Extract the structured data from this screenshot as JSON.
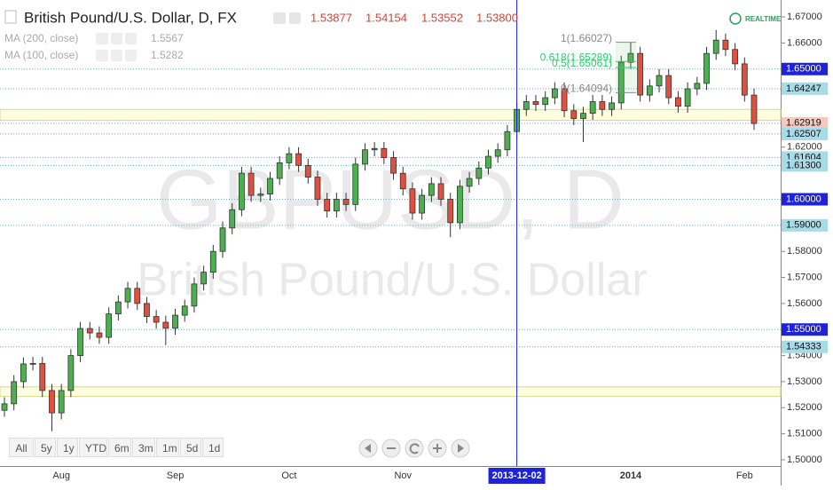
{
  "header": {
    "title": "British Pound/U.S. Dollar, D, FX",
    "ohlc": [
      "1.53877",
      "1.54154",
      "1.53552",
      "1.53800"
    ],
    "indicators": [
      {
        "name": "MA (200, close)",
        "value": "1.5567"
      },
      {
        "name": "MA (100, close)",
        "value": "1.5282"
      }
    ],
    "status": "REALTIME"
  },
  "chart_data": {
    "type": "candlestick",
    "watermark": [
      "GBPUSD, D",
      "British Pound/U.S. Dollar"
    ],
    "categories": [
      null,
      null,
      null,
      null,
      null,
      null,
      "Aug",
      null,
      null,
      null,
      null,
      null,
      null,
      null,
      null,
      null,
      null,
      null,
      "Sep",
      null,
      null,
      null,
      null,
      null,
      null,
      null,
      null,
      null,
      null,
      null,
      "Oct",
      null,
      null,
      null,
      null,
      null,
      null,
      null,
      null,
      null,
      null,
      null,
      "Nov",
      null,
      null,
      null,
      null,
      null,
      null,
      null,
      null,
      null,
      null,
      null,
      null,
      null,
      null,
      null,
      null,
      null,
      null,
      null,
      null,
      null,
      null,
      null,
      "2014",
      null,
      null,
      null,
      null,
      null,
      null,
      null,
      null,
      null,
      null,
      null,
      "Feb",
      null
    ],
    "open": [
      1.519,
      1.5215,
      1.53,
      1.5368,
      1.537,
      1.5266,
      1.518,
      1.5266,
      1.54,
      1.5504,
      1.5487,
      1.547,
      1.556,
      1.5606,
      1.5658,
      1.56,
      1.555,
      1.5528,
      1.5505,
      1.5555,
      1.559,
      1.5675,
      1.572,
      1.58,
      1.589,
      1.596,
      1.61,
      1.6015,
      1.602,
      1.608,
      1.614,
      1.6175,
      1.613,
      1.6085,
      1.6,
      1.5955,
      1.6,
      1.598,
      1.6135,
      1.619,
      1.6195,
      1.616,
      1.61,
      1.604,
      1.5947,
      1.6015,
      1.606,
      1.6,
      1.591,
      1.605,
      1.608,
      1.612,
      1.6165,
      1.619,
      1.626,
      1.6345,
      1.6375,
      1.6364,
      1.639,
      1.6424,
      1.634,
      1.631,
      1.633,
      1.6375,
      1.6345,
      1.637,
      1.6526,
      1.656,
      1.64,
      1.6435,
      1.6475,
      1.639,
      1.6357,
      1.6424,
      1.6445,
      1.656,
      1.6611,
      1.6575,
      1.652,
      1.64
    ],
    "high": [
      1.524,
      1.5325,
      1.5393,
      1.5395,
      1.5395,
      1.5291,
      1.5291,
      1.5425,
      1.5529,
      1.5529,
      1.5512,
      1.5585,
      1.5631,
      1.5683,
      1.5683,
      1.5625,
      1.5575,
      1.5553,
      1.558,
      1.5615,
      1.57,
      1.5745,
      1.5825,
      1.5915,
      1.5985,
      1.6125,
      1.6125,
      1.6045,
      1.6105,
      1.6165,
      1.62,
      1.62,
      1.6155,
      1.611,
      1.6025,
      1.6025,
      1.6025,
      1.616,
      1.6215,
      1.622,
      1.622,
      1.6185,
      1.6125,
      1.6065,
      1.604,
      1.6085,
      1.6085,
      1.6025,
      1.6075,
      1.6105,
      1.6145,
      1.619,
      1.6215,
      1.6285,
      1.637,
      1.64,
      1.64,
      1.6415,
      1.6449,
      1.6449,
      1.6365,
      1.6355,
      1.64,
      1.64,
      1.6395,
      1.6551,
      1.6603,
      1.6585,
      1.646,
      1.65,
      1.65,
      1.6415,
      1.6449,
      1.647,
      1.6585,
      1.665,
      1.6636,
      1.66,
      1.6545,
      1.6425
    ],
    "low": [
      1.5165,
      1.519,
      1.5275,
      1.5343,
      1.5241,
      1.511,
      1.5155,
      1.5241,
      1.5375,
      1.5462,
      1.5445,
      1.5445,
      1.5535,
      1.5581,
      1.5575,
      1.5525,
      1.5503,
      1.544,
      1.548,
      1.553,
      1.5565,
      1.565,
      1.5695,
      1.5775,
      1.5865,
      1.5935,
      1.599,
      1.599,
      1.5995,
      1.6055,
      1.6115,
      1.6105,
      1.606,
      1.5975,
      1.593,
      1.593,
      1.5955,
      1.5955,
      1.611,
      1.6165,
      1.6135,
      1.6075,
      1.6015,
      1.5922,
      1.5922,
      1.599,
      1.5975,
      1.5855,
      1.5885,
      1.6025,
      1.6055,
      1.6095,
      1.614,
      1.6165,
      1.6235,
      1.632,
      1.6339,
      1.6339,
      1.6365,
      1.6315,
      1.6285,
      1.622,
      1.6305,
      1.632,
      1.632,
      1.6345,
      1.6501,
      1.6375,
      1.6375,
      1.641,
      1.6365,
      1.6332,
      1.6332,
      1.6399,
      1.642,
      1.6535,
      1.655,
      1.6495,
      1.6375,
      1.6266
    ],
    "close": [
      1.5215,
      1.53,
      1.5368,
      1.537,
      1.5266,
      1.518,
      1.5266,
      1.54,
      1.5504,
      1.5487,
      1.547,
      1.556,
      1.5606,
      1.5658,
      1.56,
      1.555,
      1.5528,
      1.5505,
      1.5555,
      1.559,
      1.5675,
      1.572,
      1.58,
      1.589,
      1.596,
      1.61,
      1.6015,
      1.602,
      1.608,
      1.614,
      1.6175,
      1.613,
      1.6085,
      1.6,
      1.5955,
      1.6,
      1.598,
      1.6135,
      1.619,
      1.6195,
      1.616,
      1.61,
      1.604,
      1.5947,
      1.6015,
      1.606,
      1.6,
      1.591,
      1.605,
      1.608,
      1.612,
      1.6165,
      1.619,
      1.626,
      1.6345,
      1.6375,
      1.6364,
      1.639,
      1.6424,
      1.634,
      1.631,
      1.633,
      1.6375,
      1.6345,
      1.637,
      1.6526,
      1.656,
      1.64,
      1.6435,
      1.6475,
      1.639,
      1.6357,
      1.6424,
      1.6445,
      1.656,
      1.6611,
      1.6575,
      1.652,
      1.64,
      1.6291
    ],
    "up_color": "#4caf50",
    "down_color": "#e04f3f",
    "ylim": [
      1.4976,
      1.6765
    ],
    "yticks": [
      {
        "value": 1.5,
        "label": "1.50000"
      },
      {
        "value": 1.51,
        "label": "1.51000"
      },
      {
        "value": 1.52,
        "label": "1.52000"
      },
      {
        "value": 1.53,
        "label": "1.53000"
      },
      {
        "value": 1.54,
        "label": "1.54000"
      },
      {
        "value": 1.56,
        "label": "1.56000"
      },
      {
        "value": 1.57,
        "label": "1.57000"
      },
      {
        "value": 1.58,
        "label": "1.58000"
      },
      {
        "value": 1.62,
        "label": "1.62000"
      },
      {
        "value": 1.66,
        "label": "1.66000"
      },
      {
        "value": 1.67,
        "label": "1.67000"
      }
    ],
    "grid": true,
    "price_lines": [
      {
        "value": 1.65,
        "label": "1.65000",
        "color": "#1e22d8"
      },
      {
        "value": 1.64247,
        "label": "1.64247",
        "color": "#a8dbe8"
      },
      {
        "value": 1.62919,
        "label": "1.62919",
        "color": "#f6c9c0"
      },
      {
        "value": 1.62507,
        "label": "1.62507",
        "color": "#a8dbe8"
      },
      {
        "value": 1.61604,
        "label": "1.61604",
        "color": "#a8dbe8"
      },
      {
        "value": 1.613,
        "label": "1.61300",
        "color": "#a8dbe8"
      },
      {
        "value": 1.6,
        "label": "1.60000",
        "color": "#1e22d8"
      },
      {
        "value": 1.59,
        "label": "1.59000",
        "color": "#a8dbe8"
      },
      {
        "value": 1.55,
        "label": "1.55000",
        "color": "#1e22d8"
      },
      {
        "value": 1.54333,
        "label": "1.54333",
        "color": "#a8dbe8"
      }
    ],
    "bands": [
      [
        1.6303,
        1.6345
      ],
      [
        1.5243,
        1.528
      ]
    ],
    "fib": [
      {
        "value": 1.66027,
        "label": "1(1.66027)",
        "color": "#888888"
      },
      {
        "value": 1.65289,
        "label": "0.618(1.65289)",
        "color": "#2ecc71"
      },
      {
        "value": 1.65061,
        "label": "0.5(1.65061)",
        "color": "#2ecc71"
      },
      {
        "value": 1.64094,
        "label": "0(1.64094)",
        "color": "#888888"
      }
    ],
    "marker": {
      "index": 54,
      "label": "2013-12-02"
    }
  },
  "toolbar": {
    "ranges": [
      "All",
      "5y",
      "1y",
      "YTD",
      "6m",
      "3m",
      "1m",
      "5d",
      "1d"
    ]
  }
}
